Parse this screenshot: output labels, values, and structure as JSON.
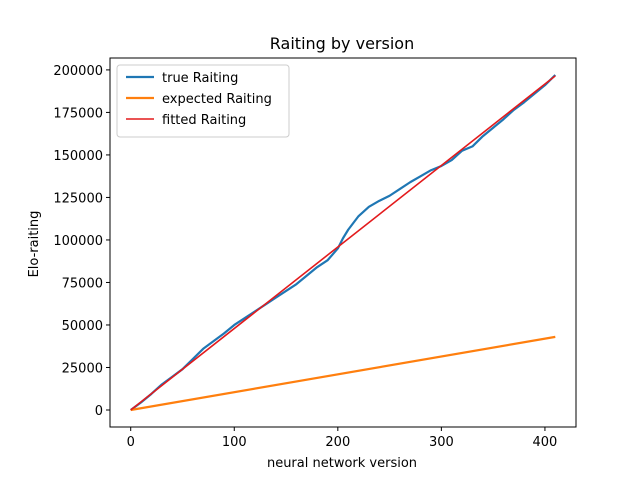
{
  "chart_data": {
    "type": "line",
    "title": "Raiting by version",
    "xlabel": "neural network version",
    "ylabel": "Elo-raiting",
    "xlim": [
      -20,
      430
    ],
    "ylim": [
      -10000,
      207000
    ],
    "xticks": [
      0,
      100,
      200,
      300,
      400
    ],
    "yticks": [
      0,
      25000,
      50000,
      75000,
      100000,
      125000,
      150000,
      175000,
      200000
    ],
    "grid": false,
    "legend_position": "top-left",
    "series": [
      {
        "name": "true Raiting",
        "color": "#1f77b4",
        "x": [
          0,
          10,
          20,
          30,
          40,
          50,
          60,
          70,
          80,
          90,
          100,
          110,
          120,
          130,
          140,
          150,
          160,
          170,
          180,
          190,
          200,
          205,
          210,
          220,
          230,
          240,
          250,
          260,
          270,
          280,
          290,
          300,
          310,
          320,
          330,
          340,
          350,
          360,
          370,
          380,
          390,
          400,
          410
        ],
        "y": [
          0,
          4500,
          9500,
          15000,
          19500,
          24000,
          30000,
          36000,
          40500,
          45000,
          50000,
          54000,
          58000,
          62000,
          66000,
          70000,
          74000,
          79000,
          84000,
          88000,
          95000,
          101000,
          106000,
          114000,
          119500,
          123000,
          126000,
          130000,
          134000,
          137500,
          141000,
          143500,
          147000,
          152500,
          155000,
          161000,
          166000,
          171000,
          176500,
          181000,
          186000,
          191000,
          197000
        ]
      },
      {
        "name": "expected Raiting",
        "color": "#ff7f0e",
        "x": [
          0,
          410
        ],
        "y": [
          0,
          43000
        ]
      },
      {
        "name": "fitted Raiting",
        "color": "#e31a1c",
        "x": [
          0,
          410
        ],
        "y": [
          0,
          196500
        ]
      }
    ]
  }
}
